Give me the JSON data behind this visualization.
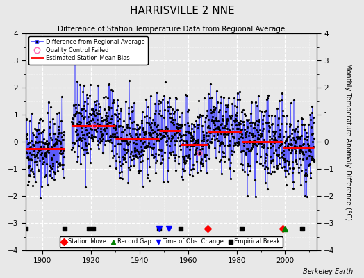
{
  "title": "HARRISVILLE 2 NNE",
  "subtitle": "Difference of Station Temperature Data from Regional Average",
  "ylabel": "Monthly Temperature Anomaly Difference (°C)",
  "xlim": [
    1893,
    2013
  ],
  "ylim": [
    -4,
    4
  ],
  "background_color": "#e8e8e8",
  "line_color": "#4444ff",
  "dot_color": "#000000",
  "bias_color": "#ff0000",
  "watermark": "Berkeley Earth",
  "segments": [
    {
      "xstart": 1893,
      "xend": 1909,
      "bias": -0.25
    },
    {
      "xstart": 1912,
      "xend": 1930,
      "bias": 0.6
    },
    {
      "xstart": 1930,
      "xend": 1948,
      "bias": 0.1
    },
    {
      "xstart": 1948,
      "xend": 1957,
      "bias": 0.4
    },
    {
      "xstart": 1957,
      "xend": 1968,
      "bias": -0.1
    },
    {
      "xstart": 1968,
      "xend": 1982,
      "bias": 0.35
    },
    {
      "xstart": 1982,
      "xend": 1999,
      "bias": 0.0
    },
    {
      "xstart": 1999,
      "xend": 2012,
      "bias": -0.2
    }
  ],
  "events": {
    "empirical_breaks": [
      1893,
      1909,
      1919,
      1921,
      1948,
      1957,
      1968,
      1982,
      2007
    ],
    "station_moves": [
      1968,
      1999
    ],
    "record_gaps": [
      2000
    ],
    "time_obs_changes": [
      1948,
      1952
    ]
  },
  "gap_regions": [
    {
      "xstart": 1909.0,
      "xend": 1912.0
    }
  ],
  "qc_failed_years": [
    1921.3,
    1964.7
  ],
  "seed": 42,
  "noise_std": 0.7
}
